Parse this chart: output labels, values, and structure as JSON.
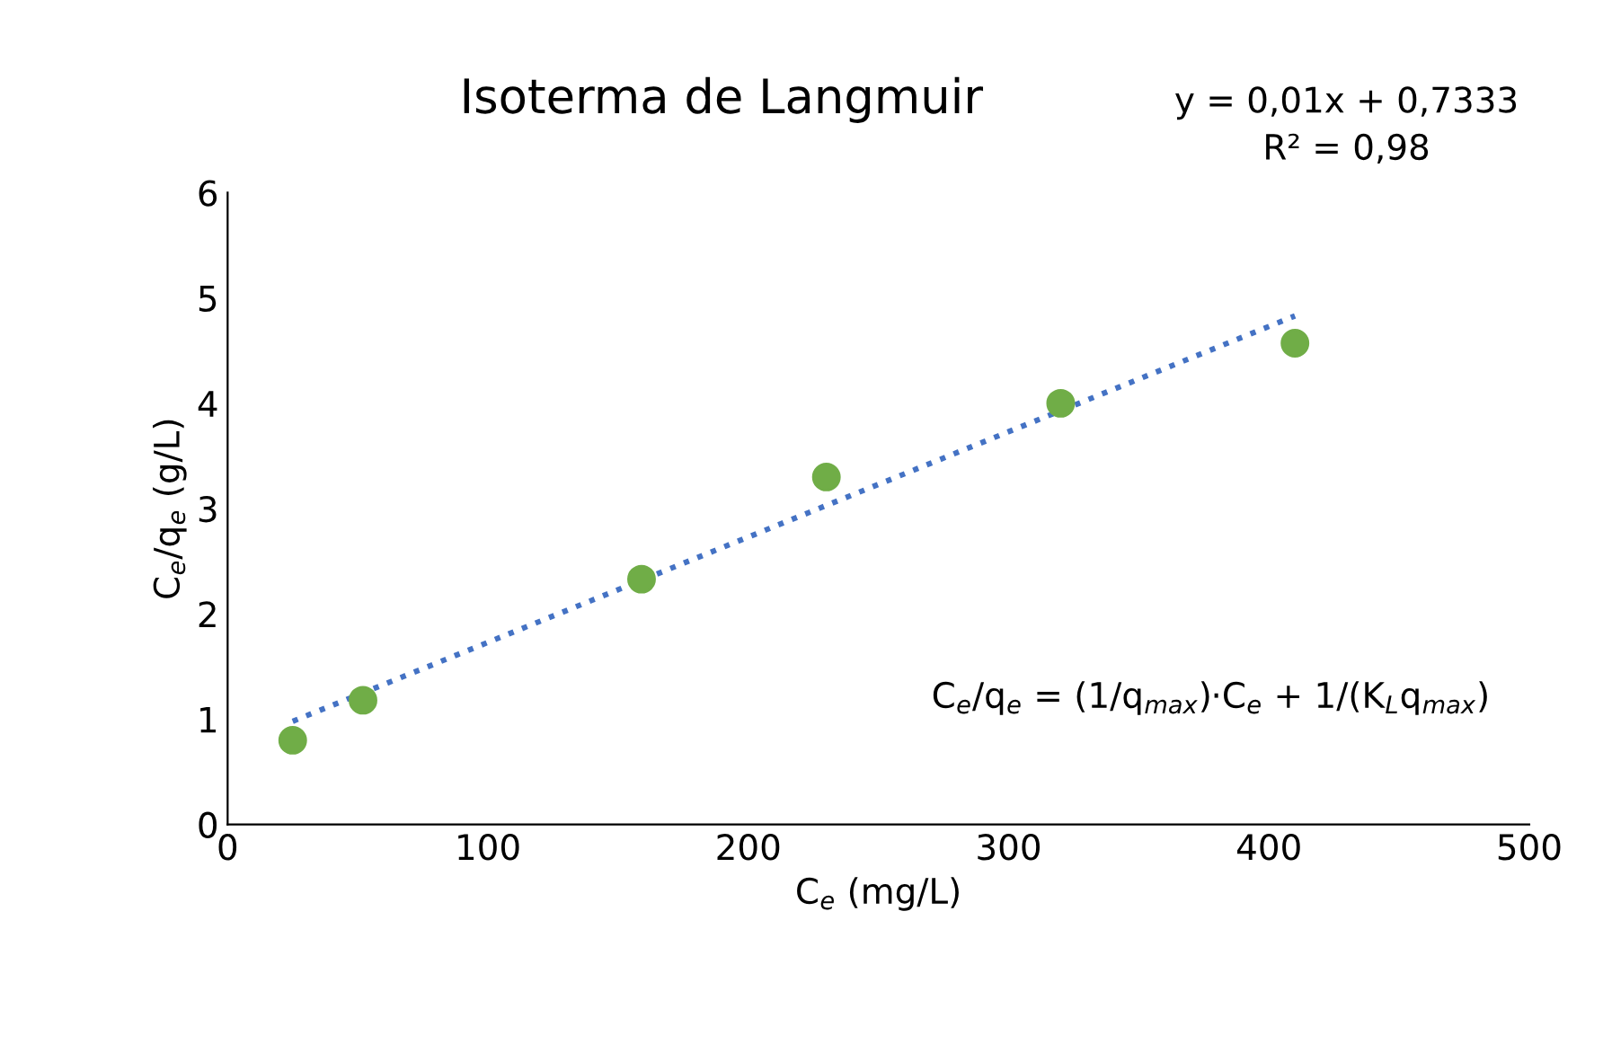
{
  "chart_data": {
    "type": "scatter",
    "title": "Isoterma de Langmuir",
    "xlabel": "C$_{e}$ (mg/L)",
    "ylabel": "C$_{e}$/q$_{e}$ (g/L)",
    "series": [
      {
        "color": "#70ad47",
        "marker": "circle",
        "x": [
          25,
          52,
          159,
          230,
          320,
          410
        ],
        "values": [
          0.8,
          1.18,
          2.33,
          3.3,
          4.0,
          4.57
        ]
      },
      {
        "type": "line",
        "color": "#4472c4",
        "line_style": "dotted",
        "marker": "none",
        "x": [
          25,
          410
        ],
        "values": [
          0.98,
          4.83
        ]
      }
    ],
    "xlim": [
      0,
      500
    ],
    "xticks": [
      0,
      100,
      200,
      300,
      400,
      500
    ],
    "ylim": [
      0,
      6
    ],
    "yticks": [
      0,
      1,
      2,
      3,
      4,
      5,
      6
    ],
    "grid": false,
    "legend": false,
    "annotations": [
      "y = 0,01x + 0,7333\nR² = 0,98",
      "C$_{e}$/q$_{e}$ = (1/q$_{max}$)·C$_{e}$ + 1/(K$_{L}$q$_{max}$)"
    ]
  }
}
